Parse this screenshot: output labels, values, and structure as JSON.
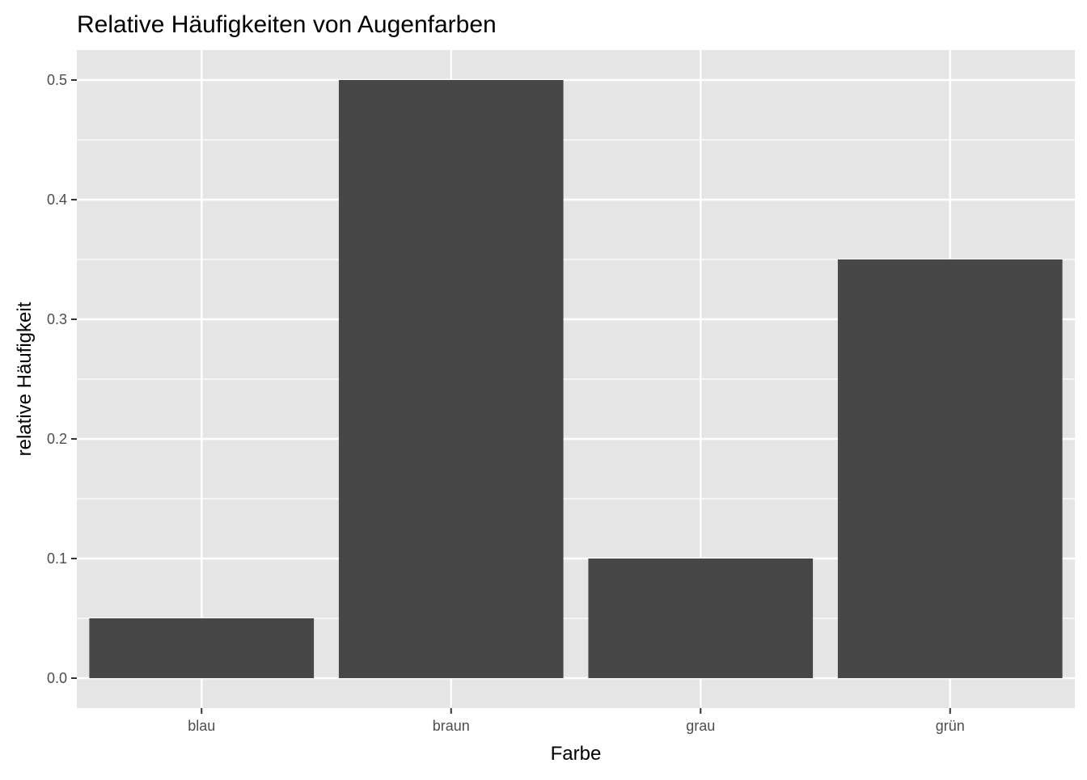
{
  "chart_data": {
    "type": "bar",
    "title": "Relative Häufigkeiten von Augenfarben",
    "xlabel": "Farbe",
    "ylabel": "relative Häufigkeit",
    "categories": [
      "blau",
      "braun",
      "grau",
      "grün"
    ],
    "values": [
      0.05,
      0.5,
      0.1,
      0.35
    ],
    "ylim": [
      -0.025,
      0.525
    ],
    "yticks": [
      0.0,
      0.1,
      0.2,
      0.3,
      0.4,
      0.5
    ],
    "ytick_labels": [
      "0.0",
      "0.1",
      "0.2",
      "0.3",
      "0.4",
      "0.5"
    ],
    "grid": true,
    "colors": {
      "bar": "#474747",
      "panel": "#e5e5e5",
      "grid": "#ffffff",
      "text": "#4d4d4d"
    }
  }
}
